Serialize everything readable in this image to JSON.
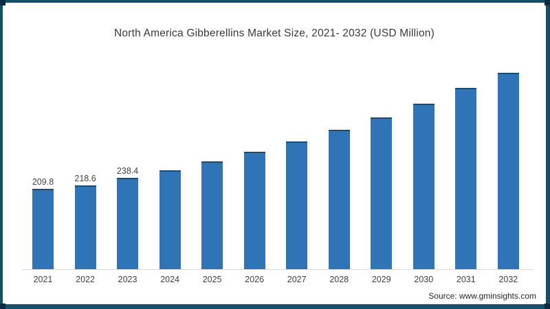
{
  "frame": {
    "border_color": "#15506a",
    "corner_accent_color": "#0d2c43",
    "background_color": "#ffffff"
  },
  "chart": {
    "title": "North America Gibberellins Market Size, 2021- 2032 (USD Million)"
  },
  "footer": {
    "source_text": "Source: www.gminsights.com"
  },
  "chart_data": {
    "type": "bar",
    "title": "North America Gibberellins Market Size, 2021- 2032 (USD Million)",
    "categories": [
      "2021",
      "2022",
      "2023",
      "2024",
      "2025",
      "2026",
      "2027",
      "2028",
      "2029",
      "2030",
      "2031",
      "2032"
    ],
    "values": [
      209.8,
      218.6,
      238.4,
      260,
      283,
      309,
      336.5,
      367,
      399,
      436,
      478,
      519
    ],
    "data_labels": [
      "209.8",
      "218.6",
      "238.4",
      "",
      "",
      "",
      "",
      "",
      "",
      "",
      "",
      ""
    ],
    "xlabel": "",
    "ylabel": "",
    "ylim": [
      0,
      560
    ],
    "grid": false,
    "legend": "none",
    "bar_color": "#2e74b6",
    "bar_top_edge_color": "#1b4a75",
    "axis_line_color": "#d9d9d9",
    "label_text_color": "#404040"
  }
}
